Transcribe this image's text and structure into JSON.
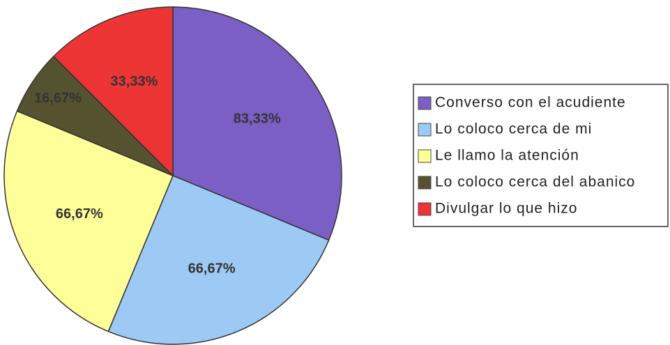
{
  "chart_data": {
    "type": "pie",
    "categories": [
      "Converso con el acudiente",
      "Lo coloco cerca de mi",
      "Le llamo la atención",
      "Lo coloco cerca del abanico",
      "Divulgar lo que hizo"
    ],
    "values": [
      83.33,
      66.67,
      66.67,
      16.67,
      33.33
    ],
    "value_labels": [
      "83,33%",
      "66,67%",
      "66,67%",
      "16,67%",
      "33,33%"
    ],
    "colors": [
      "#7b5fc4",
      "#9ccaf5",
      "#ffff99",
      "#55532f",
      "#ee3535"
    ]
  }
}
